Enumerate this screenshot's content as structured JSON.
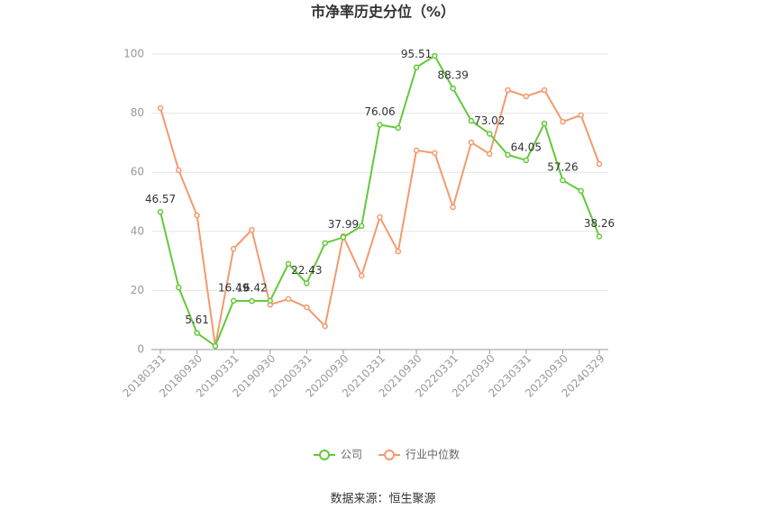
{
  "chart_data": {
    "type": "line",
    "title": "市净率历史分位（%）",
    "categories": [
      "20180331",
      null,
      "20180930",
      null,
      "20190331",
      null,
      "20190930",
      null,
      "20200331",
      null,
      "20200930",
      null,
      "20210331",
      null,
      "20210930",
      null,
      "20220331",
      null,
      "20220930",
      null,
      "20230331",
      null,
      "20230930",
      null,
      "20240329"
    ],
    "series": [
      {
        "name": "公司",
        "color": "#63c93a",
        "values": [
          46.57,
          21.0,
          5.61,
          1.2,
          16.49,
          16.42,
          16.5,
          29.0,
          22.43,
          36.0,
          37.99,
          41.8,
          76.06,
          75.0,
          95.51,
          99.4,
          88.39,
          77.4,
          73.02,
          65.9,
          64.05,
          76.5,
          57.26,
          53.7,
          38.26
        ],
        "value_labels": [
          "46.57",
          null,
          "5.61",
          null,
          "16.49",
          "16.42",
          null,
          null,
          "22.43",
          null,
          "37.99",
          null,
          "76.06",
          null,
          "95.51",
          null,
          "88.39",
          null,
          "73.02",
          null,
          "64.05",
          null,
          "57.26",
          null,
          "38.26"
        ]
      },
      {
        "name": "行业中位数",
        "color": "#f39a6e",
        "values": [
          81.7,
          60.7,
          45.4,
          1.2,
          34.1,
          40.5,
          15.2,
          17.1,
          14.3,
          7.9,
          38.4,
          25.0,
          44.8,
          33.2,
          67.4,
          66.5,
          48.2,
          70.1,
          66.2,
          87.8,
          85.7,
          87.8,
          77.1,
          79.3,
          62.8
        ]
      }
    ],
    "ylim": [
      0,
      100
    ],
    "yticks": [
      0,
      20,
      40,
      60,
      80,
      100
    ],
    "grid": true,
    "source": "数据来源：恒生聚源"
  }
}
